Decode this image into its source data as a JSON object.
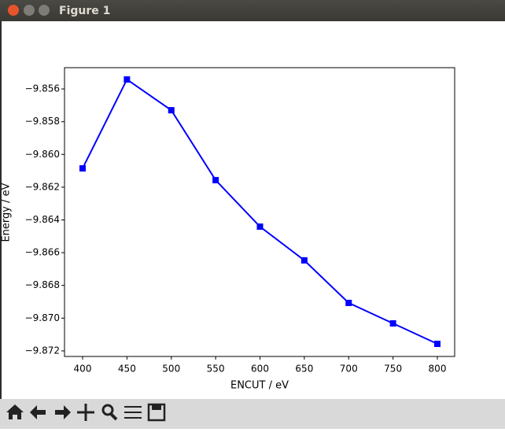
{
  "window": {
    "title": "Figure 1"
  },
  "chart_data": {
    "type": "line",
    "xlabel": "ENCUT / eV",
    "ylabel": "Energy / eV",
    "x": [
      400,
      450,
      500,
      550,
      600,
      650,
      700,
      750,
      800
    ],
    "series": [
      {
        "color": "#0000ff",
        "marker": "square",
        "values": [
          -9.86085,
          -9.85542,
          -9.8573,
          -9.86157,
          -9.86441,
          -9.86647,
          -9.86907,
          -9.87032,
          -9.87157
        ]
      }
    ],
    "xlim": [
      379.6,
      819.5
    ],
    "xticks": [
      400,
      450,
      500,
      550,
      600,
      650,
      700,
      750,
      800
    ],
    "ylim": [
      -9.87234,
      -9.8547
    ],
    "yticks": [
      {
        "value": -9.872,
        "label": "−9.872"
      },
      {
        "value": -9.87,
        "label": "−9.870"
      },
      {
        "value": -9.868,
        "label": "−9.868"
      },
      {
        "value": -9.866,
        "label": "−9.866"
      },
      {
        "value": -9.864,
        "label": "−9.864"
      },
      {
        "value": -9.862,
        "label": "−9.862"
      },
      {
        "value": -9.86,
        "label": "−9.860"
      },
      {
        "value": -9.858,
        "label": "−9.858"
      },
      {
        "value": -9.856,
        "label": "−9.856"
      }
    ],
    "grid": false
  }
}
